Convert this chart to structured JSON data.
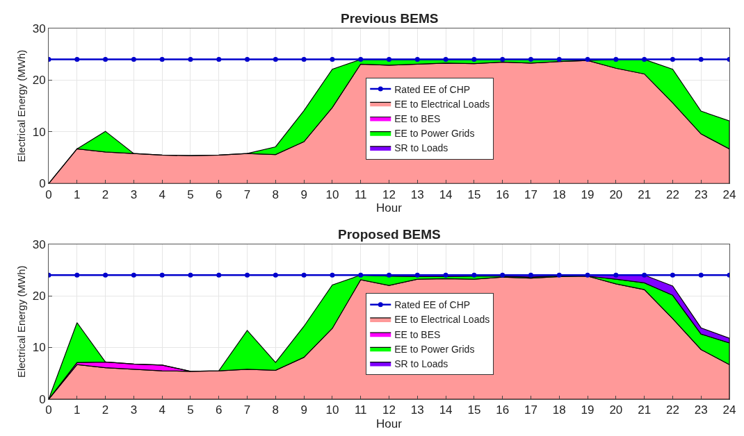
{
  "chart_data": [
    {
      "type": "area",
      "title": "Previous BEMS",
      "xlabel": "Hour",
      "ylabel": "Electrical Energy (MWh)",
      "stacked": true,
      "grid": true,
      "legend": "center",
      "x": [
        0,
        1,
        2,
        3,
        4,
        5,
        6,
        7,
        8,
        9,
        10,
        11,
        12,
        13,
        14,
        15,
        16,
        17,
        18,
        19,
        20,
        21,
        22,
        23,
        24
      ],
      "xlim": [
        0,
        24
      ],
      "xticks": [
        0,
        1,
        2,
        3,
        4,
        5,
        6,
        7,
        8,
        9,
        10,
        11,
        12,
        13,
        14,
        15,
        16,
        17,
        18,
        19,
        20,
        21,
        22,
        23,
        24
      ],
      "ylim": [
        0,
        30
      ],
      "yticks": [
        0,
        10,
        20,
        30
      ],
      "series": [
        {
          "name": "EE to Electrical Loads",
          "color": "#ff9999",
          "values": [
            0,
            6.7,
            6.1,
            5.8,
            5.5,
            5.4,
            5.5,
            5.8,
            5.6,
            8.1,
            14.7,
            23.1,
            22.9,
            23.1,
            23.3,
            23.2,
            23.5,
            23.3,
            23.6,
            23.8,
            22.3,
            21.2,
            15.6,
            9.6,
            6.7
          ]
        },
        {
          "name": "EE to BES",
          "color": "#ff00ff",
          "values": [
            null,
            null,
            null,
            null,
            null,
            null,
            null,
            null,
            null,
            null,
            null,
            null,
            null,
            null,
            null,
            null,
            null,
            null,
            null,
            null,
            null,
            null,
            null,
            null,
            null
          ]
        },
        {
          "name": "EE to Power Grids",
          "color": "#00ff00",
          "values": [
            0,
            0,
            4.0,
            0,
            0,
            0,
            0,
            0,
            1.5,
            6.0,
            7.4,
            0.9,
            1.1,
            0.9,
            0.7,
            0.8,
            0.5,
            0.7,
            0.4,
            0,
            1.7,
            2.8,
            6.5,
            4.4,
            5.4
          ]
        },
        {
          "name": "SR to Loads",
          "color": "#7f00ff",
          "values": [
            null,
            null,
            null,
            null,
            null,
            null,
            null,
            null,
            null,
            null,
            null,
            null,
            null,
            null,
            null,
            null,
            null,
            null,
            null,
            null,
            null,
            null,
            null,
            null,
            null
          ]
        },
        {
          "name": "Rated EE of CHP",
          "type": "line",
          "marker": "circle",
          "color": "#0000cc",
          "values": [
            24,
            24,
            24,
            24,
            24,
            24,
            24,
            24,
            24,
            24,
            24,
            24,
            24,
            24,
            24,
            24,
            24,
            24,
            24,
            24,
            24,
            24,
            24,
            24,
            24
          ]
        }
      ]
    },
    {
      "type": "area",
      "title": "Proposed BEMS",
      "xlabel": "Hour",
      "ylabel": "Electrical Energy (MWh)",
      "stacked": true,
      "grid": true,
      "legend": "center",
      "x": [
        0,
        1,
        2,
        3,
        4,
        5,
        6,
        7,
        8,
        9,
        10,
        11,
        12,
        13,
        14,
        15,
        16,
        17,
        18,
        19,
        20,
        21,
        22,
        23,
        24
      ],
      "xlim": [
        0,
        24
      ],
      "xticks": [
        0,
        1,
        2,
        3,
        4,
        5,
        6,
        7,
        8,
        9,
        10,
        11,
        12,
        13,
        14,
        15,
        16,
        17,
        18,
        19,
        20,
        21,
        22,
        23,
        24
      ],
      "ylim": [
        0,
        30
      ],
      "yticks": [
        0,
        10,
        20,
        30
      ],
      "series": [
        {
          "name": "EE to Electrical Loads",
          "color": "#ff9999",
          "values": [
            0,
            6.7,
            6.1,
            5.8,
            5.5,
            5.4,
            5.5,
            5.8,
            5.6,
            8.1,
            13.7,
            23.1,
            22.0,
            23.2,
            23.3,
            23.2,
            23.6,
            23.4,
            23.7,
            23.8,
            22.3,
            21.2,
            15.6,
            9.6,
            6.7
          ]
        },
        {
          "name": "EE to BES",
          "color": "#ff00ff",
          "values": [
            0,
            0.4,
            1.1,
            1.0,
            1.1,
            0,
            null,
            null,
            null,
            null,
            null,
            null,
            null,
            null,
            null,
            null,
            null,
            null,
            null,
            null,
            null,
            null,
            null,
            null,
            null
          ]
        },
        {
          "name": "EE to Power Grids",
          "color": "#00ff00",
          "values": [
            0,
            7.7,
            0,
            0,
            0,
            0,
            0,
            7.5,
            1.5,
            6.0,
            8.4,
            0.9,
            1.8,
            0.5,
            0.4,
            0.6,
            0.2,
            0.2,
            0.2,
            0,
            0.9,
            1.3,
            4.5,
            3.0,
            4.2
          ]
        },
        {
          "name": "SR to Loads",
          "color": "#7f00ff",
          "values": [
            null,
            null,
            null,
            null,
            null,
            null,
            null,
            null,
            null,
            null,
            null,
            0,
            0.2,
            0.3,
            0.3,
            0.2,
            0.2,
            0.4,
            0.1,
            0.2,
            0.8,
            1.5,
            1.8,
            1.2,
            0.9
          ]
        },
        {
          "name": "Rated EE of CHP",
          "type": "line",
          "marker": "circle",
          "color": "#0000cc",
          "values": [
            24,
            24,
            24,
            24,
            24,
            24,
            24,
            24,
            24,
            24,
            24,
            24,
            24,
            24,
            24,
            24,
            24,
            24,
            24,
            24,
            24,
            24,
            24,
            24,
            24
          ]
        }
      ]
    }
  ]
}
